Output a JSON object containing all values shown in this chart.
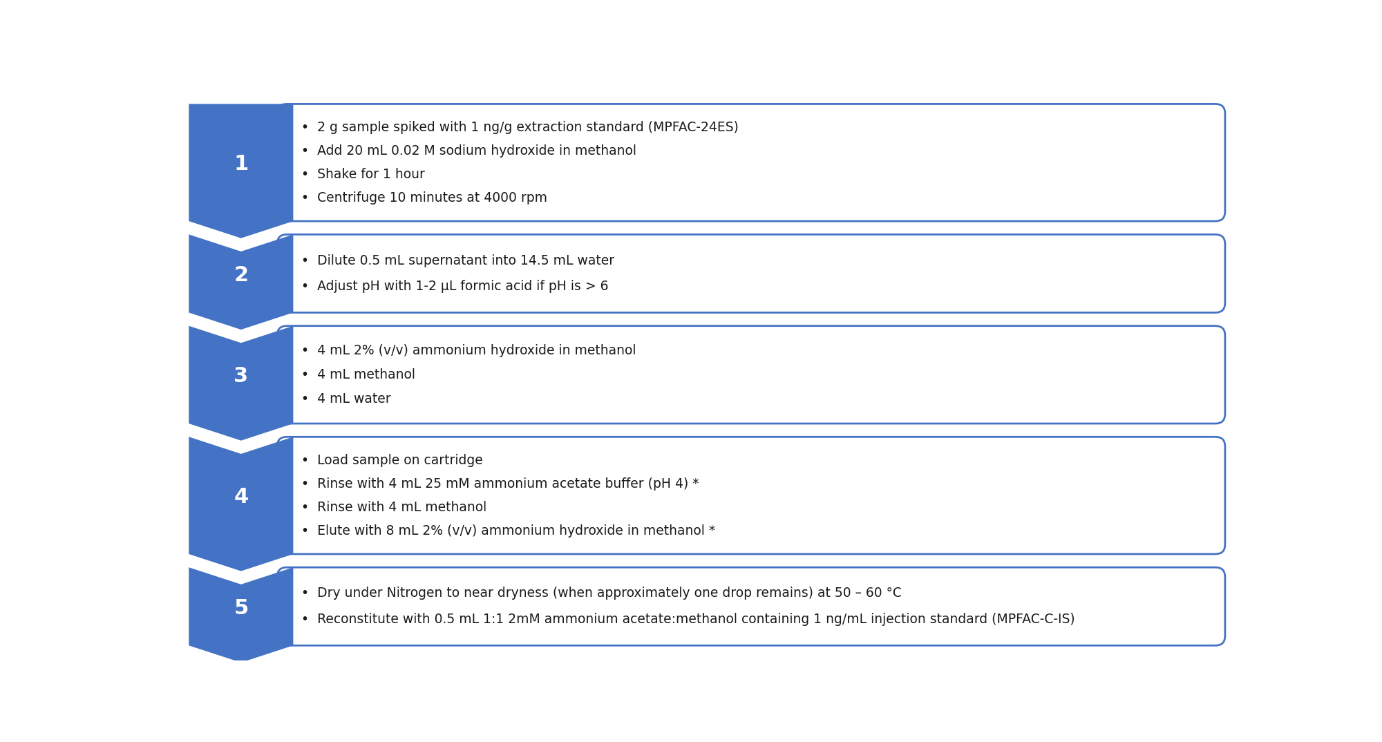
{
  "steps": [
    {
      "number": "1",
      "bullets": [
        "2 g sample spiked with 1 ng/g extraction standard (MPFAC-24ES)",
        "Add 20 mL 0.02 M sodium hydroxide in methanol",
        "Shake for 1 hour",
        "Centrifuge 10 minutes at 4000 rpm"
      ]
    },
    {
      "number": "2",
      "bullets": [
        "Dilute 0.5 mL supernatant into 14.5 mL water",
        "Adjust pH with 1-2 μL formic acid if pH is > 6"
      ]
    },
    {
      "number": "3",
      "bullets": [
        "4 mL 2% (v/v) ammonium hydroxide in methanol",
        "4 mL methanol",
        "4 mL water"
      ]
    },
    {
      "number": "4",
      "bullets": [
        "Load sample on cartridge",
        "Rinse with 4 mL 25 mM ammonium acetate buffer (pH 4) *",
        "Rinse with 4 mL methanol",
        "Elute with 8 mL 2% (v/v) ammonium hydroxide in methanol *"
      ]
    },
    {
      "number": "5",
      "bullets": [
        "Dry under Nitrogen to near dryness (when approximately one drop remains) at 50 – 60 °C",
        "Reconstitute with 0.5 mL 1:1 2mM ammonium acetate:methanol containing 1 ng/mL injection standard (MPFAC-C-IS)"
      ]
    }
  ],
  "arrow_color": "#4472C4",
  "box_edge_color": "#4472C4",
  "box_fill_color": "#FFFFFF",
  "text_color": "#1A1A1A",
  "number_color": "#FFFFFF",
  "background_color": "#FFFFFF",
  "font_size": 13.5,
  "number_font_size": 22
}
